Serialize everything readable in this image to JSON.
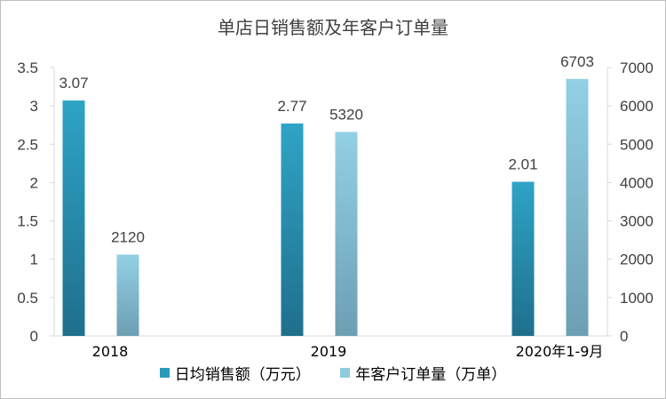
{
  "chart_data": {
    "type": "bar",
    "title": "单店日销售额及年客户订单量",
    "categories": [
      "2018",
      "2019",
      "2020年1-9月"
    ],
    "series": [
      {
        "name": "日均销售额（万元）",
        "values": [
          3.07,
          2.77,
          2.01
        ],
        "axis": "left",
        "labels": [
          "3.07",
          "2.77",
          "2.01"
        ],
        "color": "#2a9bbd"
      },
      {
        "name": "年客户订单量（万单）",
        "values": [
          2120,
          5320,
          6703
        ],
        "axis": "right",
        "labels": [
          "2120",
          "5320",
          "6703"
        ],
        "color": "#8ecbdf"
      }
    ],
    "left_axis": {
      "min": 0,
      "max": 3.5,
      "ticks": [
        "0",
        "0.5",
        "1",
        "1.5",
        "2",
        "2.5",
        "3",
        "3.5"
      ]
    },
    "right_axis": {
      "min": 0,
      "max": 7000,
      "ticks": [
        "0",
        "1000",
        "2000",
        "3000",
        "4000",
        "5000",
        "6000",
        "7000"
      ]
    },
    "grid": false,
    "legend": "bottom"
  }
}
